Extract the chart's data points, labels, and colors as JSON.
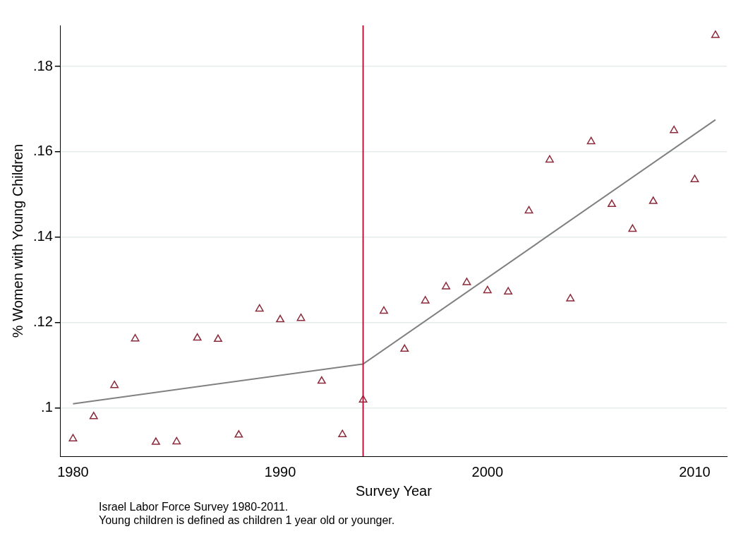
{
  "chart_data": {
    "type": "scatter",
    "xlabel": "Survey Year",
    "ylabel": "% Women with Young Children",
    "xlim": [
      1979.4,
      2011.55
    ],
    "xticks": [
      1980,
      1990,
      2000,
      2010
    ],
    "ylim": [
      0.0887,
      0.1896
    ],
    "yticks": [
      {
        "value": 0.1,
        "label": ".1"
      },
      {
        "value": 0.12,
        "label": ".12"
      },
      {
        "value": 0.14,
        "label": ".14"
      },
      {
        "value": 0.16,
        "label": ".16"
      },
      {
        "value": 0.18,
        "label": ".18"
      }
    ],
    "grid": "y",
    "legend": false,
    "series": [
      {
        "marker": "triangle",
        "color": "#8b2a3a",
        "x": [
          1980,
          1981,
          1982,
          1983,
          1984,
          1985,
          1986,
          1987,
          1988,
          1989,
          1990,
          1991,
          1992,
          1993,
          1994,
          1995,
          1996,
          1997,
          1998,
          1999,
          2000,
          2001,
          2002,
          2003,
          2004,
          2005,
          2006,
          2007,
          2008,
          2009,
          2010,
          2011
        ],
        "values": [
          0.0928,
          0.098,
          0.1053,
          0.1162,
          0.092,
          0.0921,
          0.1164,
          0.1161,
          0.0937,
          0.1232,
          0.1207,
          0.121,
          0.1063,
          0.0938,
          0.1019,
          0.1227,
          0.1138,
          0.1251,
          0.1284,
          0.1294,
          0.1275,
          0.1272,
          0.1462,
          0.1581,
          0.1256,
          0.1624,
          0.1477,
          0.1419,
          0.1484,
          0.165,
          0.1535,
          0.1873
        ]
      },
      {
        "type": "line",
        "marker": "none",
        "line_style": "solid",
        "color": "#808080",
        "x": [
          1980,
          1994,
          2011
        ],
        "values": [
          0.101,
          0.1103,
          0.1675
        ]
      }
    ],
    "ref_lines": [
      {
        "axis": "x",
        "value": 1994,
        "color": "#c0143c"
      }
    ],
    "annotations": [
      "Israel Labor Force Survey 1980-2011.",
      "Young children is defined as children 1 year old or younger."
    ]
  }
}
